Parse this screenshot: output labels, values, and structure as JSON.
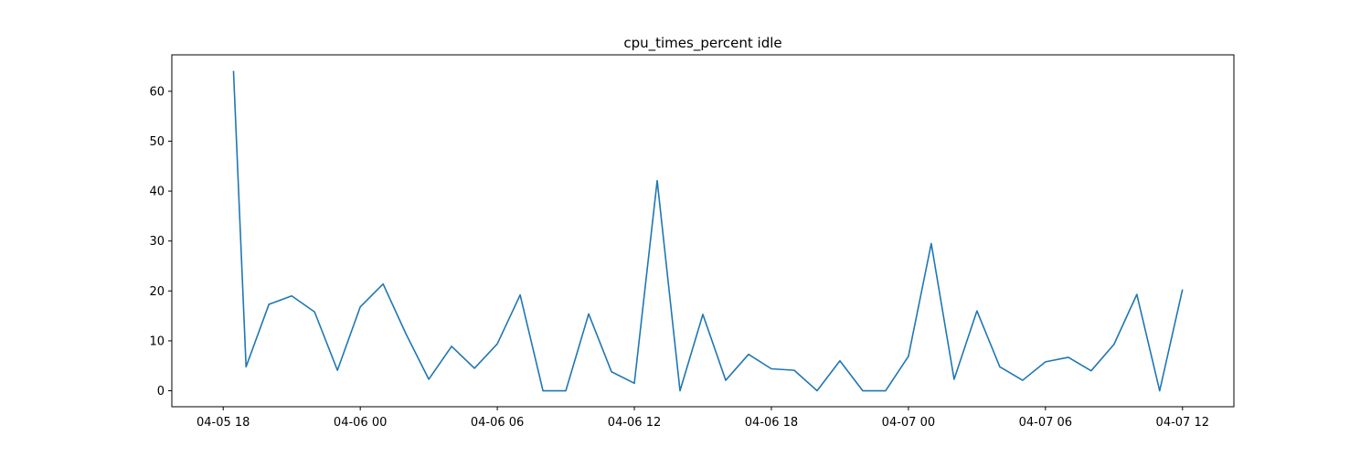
{
  "chart_data": {
    "type": "line",
    "title": "cpu_times_percent idle",
    "xlabel": "",
    "ylabel": "",
    "grid": false,
    "x_axis": {
      "type": "datetime",
      "range": [
        "2018-04-05 15:45",
        "2018-04-07 14:15"
      ],
      "ticks": [
        {
          "value": "2018-04-05 18:00",
          "label": "04-05 18"
        },
        {
          "value": "2018-04-06 00:00",
          "label": "04-06 00"
        },
        {
          "value": "2018-04-06 06:00",
          "label": "04-06 06"
        },
        {
          "value": "2018-04-06 12:00",
          "label": "04-06 12"
        },
        {
          "value": "2018-04-06 18:00",
          "label": "04-06 18"
        },
        {
          "value": "2018-04-07 00:00",
          "label": "04-07 00"
        },
        {
          "value": "2018-04-07 06:00",
          "label": "04-07 06"
        },
        {
          "value": "2018-04-07 12:00",
          "label": "04-07 12"
        }
      ]
    },
    "y_axis": {
      "range": [
        -3.2,
        67.3
      ],
      "ticks": [
        0,
        10,
        20,
        30,
        40,
        50,
        60
      ]
    },
    "series": [
      {
        "color": "#1f77b4",
        "x": [
          "2018-04-05 18:27",
          "2018-04-05 19:00",
          "2018-04-05 20:00",
          "2018-04-05 21:00",
          "2018-04-05 22:00",
          "2018-04-05 23:00",
          "2018-04-06 00:00",
          "2018-04-06 01:00",
          "2018-04-06 02:00",
          "2018-04-06 03:00",
          "2018-04-06 04:00",
          "2018-04-06 05:00",
          "2018-04-06 06:00",
          "2018-04-06 07:00",
          "2018-04-06 08:00",
          "2018-04-06 09:00",
          "2018-04-06 10:00",
          "2018-04-06 11:00",
          "2018-04-06 12:00",
          "2018-04-06 13:00",
          "2018-04-06 14:00",
          "2018-04-06 15:00",
          "2018-04-06 16:00",
          "2018-04-06 17:00",
          "2018-04-06 18:00",
          "2018-04-06 19:00",
          "2018-04-06 20:00",
          "2018-04-06 21:00",
          "2018-04-06 22:00",
          "2018-04-06 23:00",
          "2018-04-07 00:00",
          "2018-04-07 01:00",
          "2018-04-07 02:00",
          "2018-04-07 03:00",
          "2018-04-07 04:00",
          "2018-04-07 05:00",
          "2018-04-07 06:00",
          "2018-04-07 07:00",
          "2018-04-07 08:00",
          "2018-04-07 09:00",
          "2018-04-07 10:00",
          "2018-04-07 11:00",
          "2018-04-07 12:00"
        ],
        "y": [
          64.1,
          4.8,
          17.3,
          19.0,
          15.8,
          4.1,
          16.8,
          21.4,
          11.4,
          2.3,
          8.9,
          4.5,
          9.4,
          19.2,
          0.0,
          0.0,
          15.4,
          3.8,
          1.5,
          42.1,
          0.0,
          15.3,
          2.1,
          7.3,
          4.4,
          4.1,
          0.0,
          6.0,
          0.0,
          0.0,
          6.9,
          29.5,
          2.3,
          16.0,
          4.8,
          2.1,
          5.8,
          6.7,
          4.0,
          9.3,
          19.3,
          0.0,
          20.3
        ]
      }
    ]
  }
}
